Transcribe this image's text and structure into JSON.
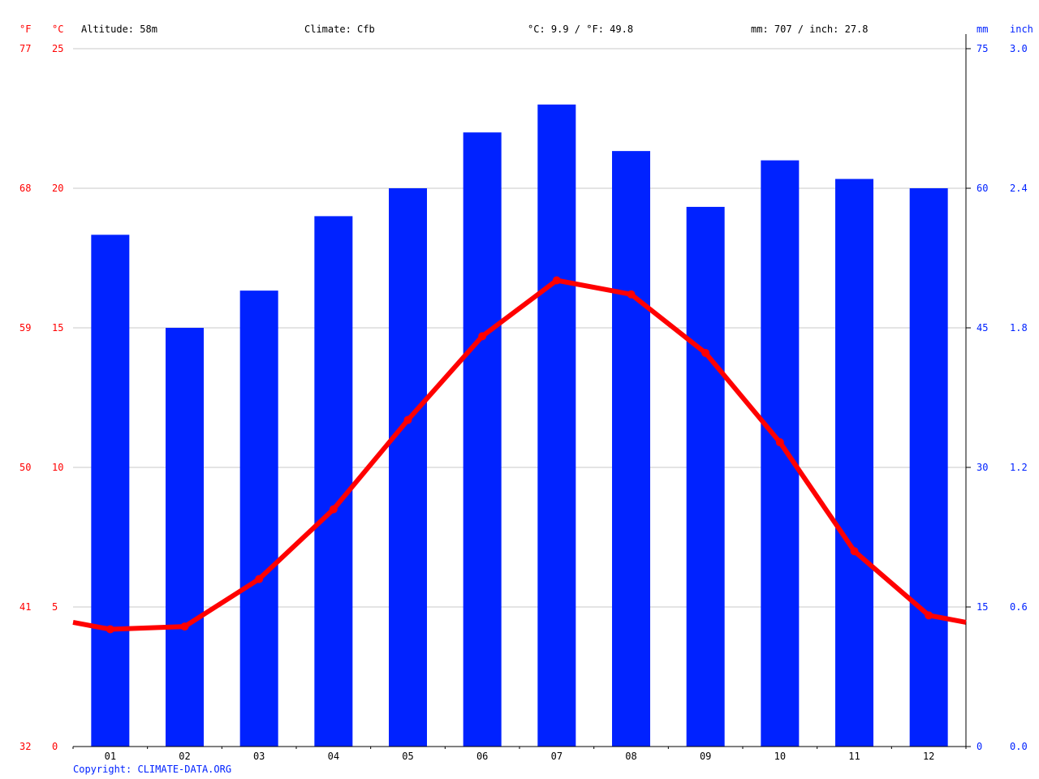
{
  "header": {
    "altitude": "Altitude: 58m",
    "climate": "Climate: Cfb",
    "temp_avg": "°C: 9.9 / °F: 49.8",
    "precip_total": "mm: 707 / inch: 27.8"
  },
  "axes": {
    "left_f_label": "°F",
    "left_c_label": "°C",
    "right_mm_label": "mm",
    "right_inch_label": "inch",
    "c_ticks": [
      "0",
      "5",
      "10",
      "15",
      "20",
      "25"
    ],
    "f_ticks": [
      "32",
      "41",
      "50",
      "59",
      "68",
      "77"
    ],
    "mm_ticks": [
      "0",
      "15",
      "30",
      "45",
      "60",
      "75"
    ],
    "inch_ticks": [
      "0.0",
      "0.6",
      "1.2",
      "1.8",
      "2.4",
      "3.0"
    ]
  },
  "copyright": "Copyright: CLIMATE-DATA.ORG",
  "colors": {
    "temp": "#ff0000",
    "precip": "#0022ff",
    "grid": "#c8c8c8",
    "axis": "#000000"
  },
  "chart_data": {
    "type": "bar",
    "categories": [
      "01",
      "02",
      "03",
      "04",
      "05",
      "06",
      "07",
      "08",
      "09",
      "10",
      "11",
      "12"
    ],
    "series": [
      {
        "kind": "bar",
        "axis": "right",
        "unit": "mm",
        "values": [
          55,
          45,
          49,
          57,
          60,
          66,
          69,
          64,
          58,
          63,
          61,
          60
        ]
      },
      {
        "kind": "line",
        "axis": "left",
        "unit": "°C",
        "values": [
          4.2,
          4.3,
          6.0,
          8.5,
          11.7,
          14.7,
          16.7,
          16.2,
          14.1,
          10.9,
          7.0,
          4.7
        ]
      }
    ],
    "temp_ylim": [
      0,
      25
    ],
    "precip_ylim": [
      0,
      75
    ],
    "grid": true
  }
}
